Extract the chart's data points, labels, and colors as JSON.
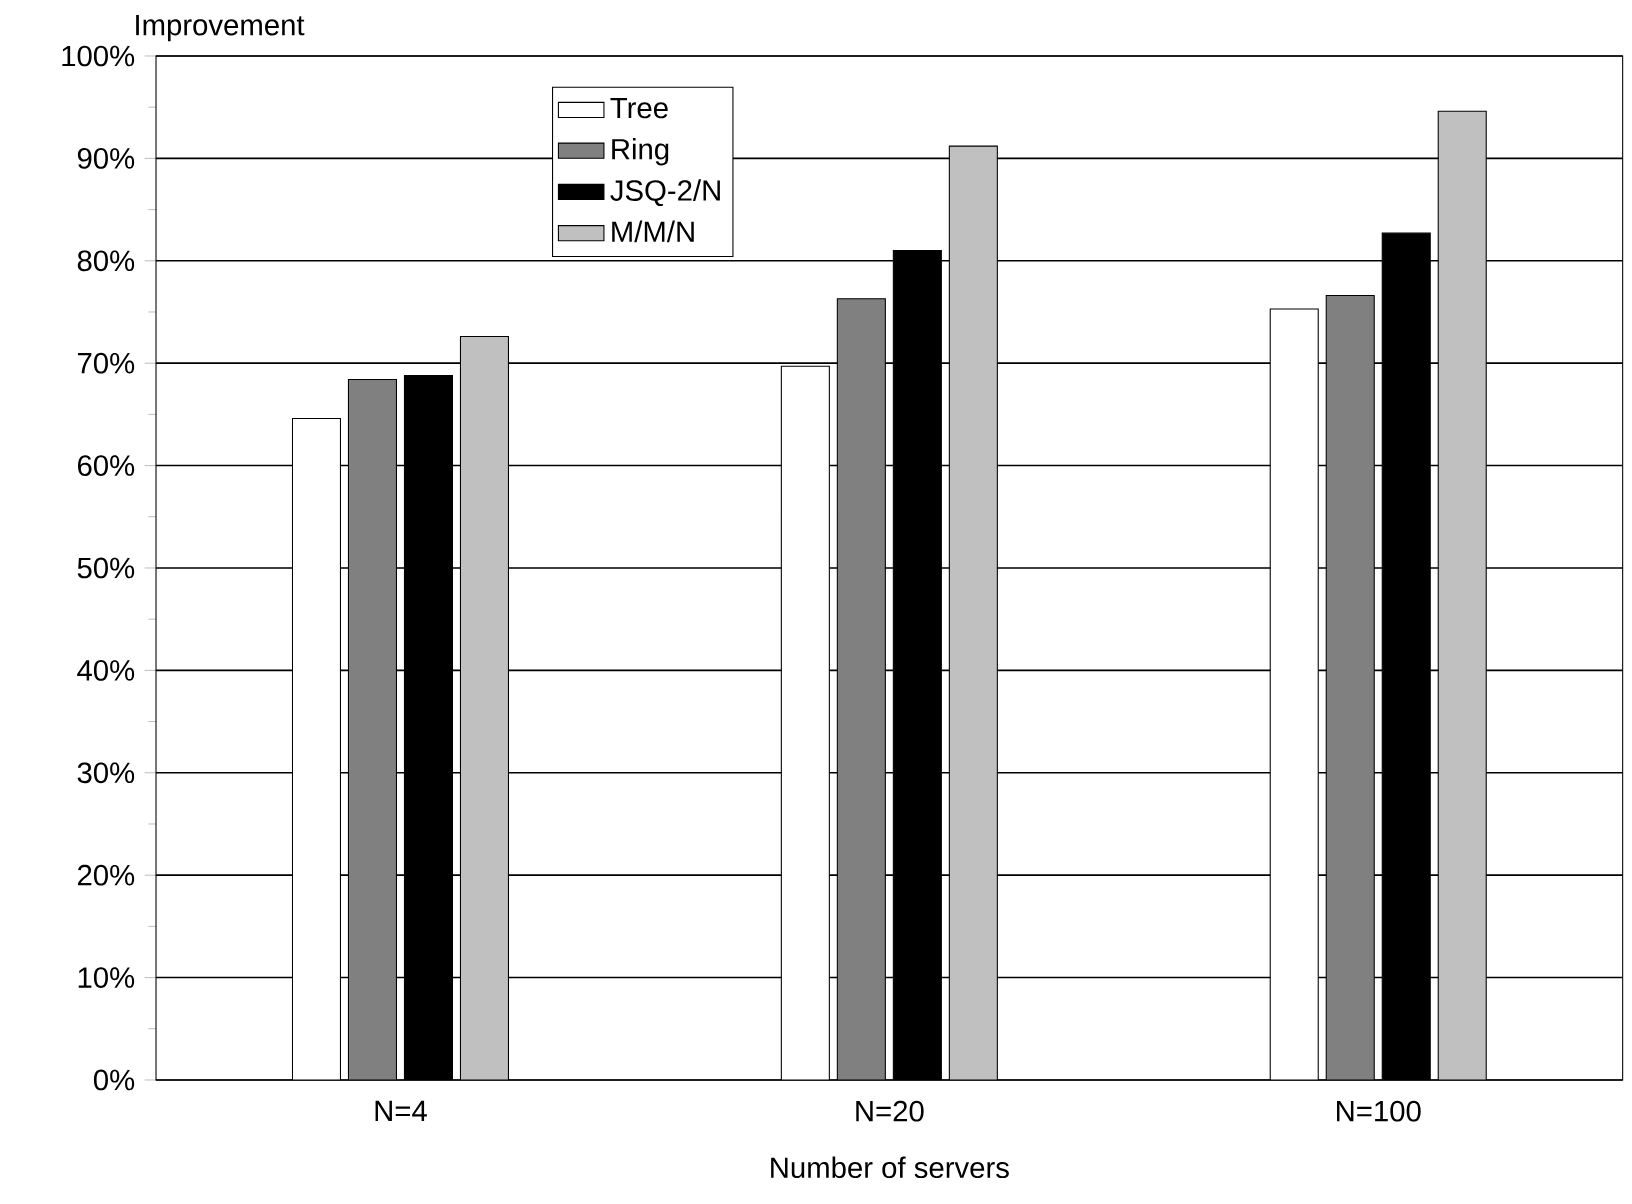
{
  "chart_data": {
    "type": "bar",
    "xlabel": "Number of servers",
    "ylabel": "Improvement",
    "categories": [
      "N=4",
      "N=20",
      "N=100"
    ],
    "series": [
      {
        "name": "Tree",
        "color": "#ffffff",
        "values": [
          64.6,
          69.7,
          75.3
        ]
      },
      {
        "name": "Ring",
        "color": "#808080",
        "values": [
          68.4,
          76.3,
          76.6
        ]
      },
      {
        "name": "JSQ-2/N",
        "color": "#000000",
        "values": [
          68.8,
          81.0,
          82.7
        ]
      },
      {
        "name": "M/M/N",
        "color": "#c0c0c0",
        "values": [
          72.6,
          91.2,
          94.6
        ]
      }
    ],
    "ylim": [
      0,
      100
    ],
    "yticks": [
      {
        "value": 0,
        "label": "0%"
      },
      {
        "value": 10,
        "label": "10%"
      },
      {
        "value": 20,
        "label": "20%"
      },
      {
        "value": 30,
        "label": "30%"
      },
      {
        "value": 40,
        "label": "40%"
      },
      {
        "value": 50,
        "label": "50%"
      },
      {
        "value": 60,
        "label": "60%"
      },
      {
        "value": 70,
        "label": "70%"
      },
      {
        "value": 80,
        "label": "80%"
      },
      {
        "value": 90,
        "label": "90%"
      },
      {
        "value": 100,
        "label": "100%"
      }
    ],
    "grid": "y",
    "legend": "top"
  }
}
